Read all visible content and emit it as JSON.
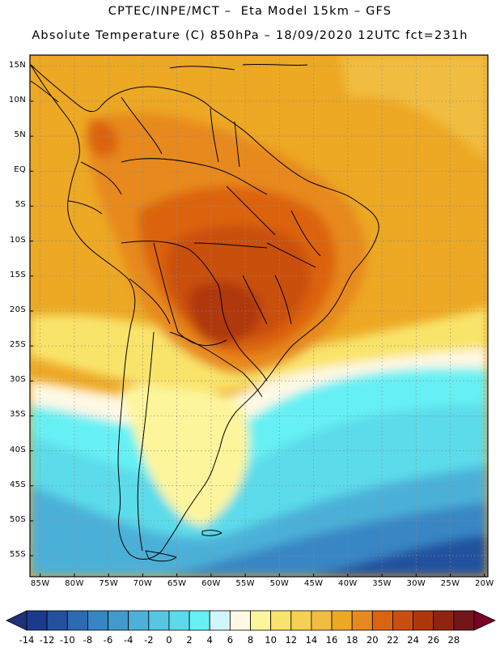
{
  "header": {
    "line1": "CPTEC/INPE/MCT –  Eta Model 15km – GFS",
    "line2": "Absolute Temperature (C) 850hPa – 18/09/2020 12UTC fct=231h"
  },
  "map": {
    "region": "South America",
    "lat_labels": [
      "15N",
      "10N",
      "5N",
      "EQ",
      "5S",
      "10S",
      "15S",
      "20S",
      "25S",
      "30S",
      "35S",
      "40S",
      "45S",
      "50S",
      "55S"
    ],
    "lon_labels": [
      "85W",
      "80W",
      "75W",
      "70W",
      "65W",
      "60W",
      "55W",
      "50W",
      "45W",
      "40W",
      "35W",
      "30W",
      "25W",
      "20W"
    ]
  },
  "legend": {
    "unit": "C",
    "labels": [
      "-14",
      "-12",
      "-10",
      "-8",
      "-6",
      "-4",
      "-2",
      "0",
      "2",
      "4",
      "6",
      "8",
      "10",
      "12",
      "14",
      "16",
      "18",
      "20",
      "22",
      "24",
      "26",
      "28"
    ],
    "colors": [
      "#1c3a8c",
      "#24519f",
      "#2c6bb4",
      "#3786c4",
      "#4299cc",
      "#4cb0d8",
      "#55c7e2",
      "#5bdbea",
      "#66f0f4",
      "#d2f5fb",
      "#fff8e4",
      "#fdf59c",
      "#f9e46b",
      "#f5d052",
      "#f1bd40",
      "#eda824",
      "#e7891e",
      "#dc6410",
      "#c94f0e",
      "#b0370c",
      "#8f2510",
      "#72161a"
    ],
    "below_color": "#20317a",
    "above_color": "#7a0028"
  }
}
